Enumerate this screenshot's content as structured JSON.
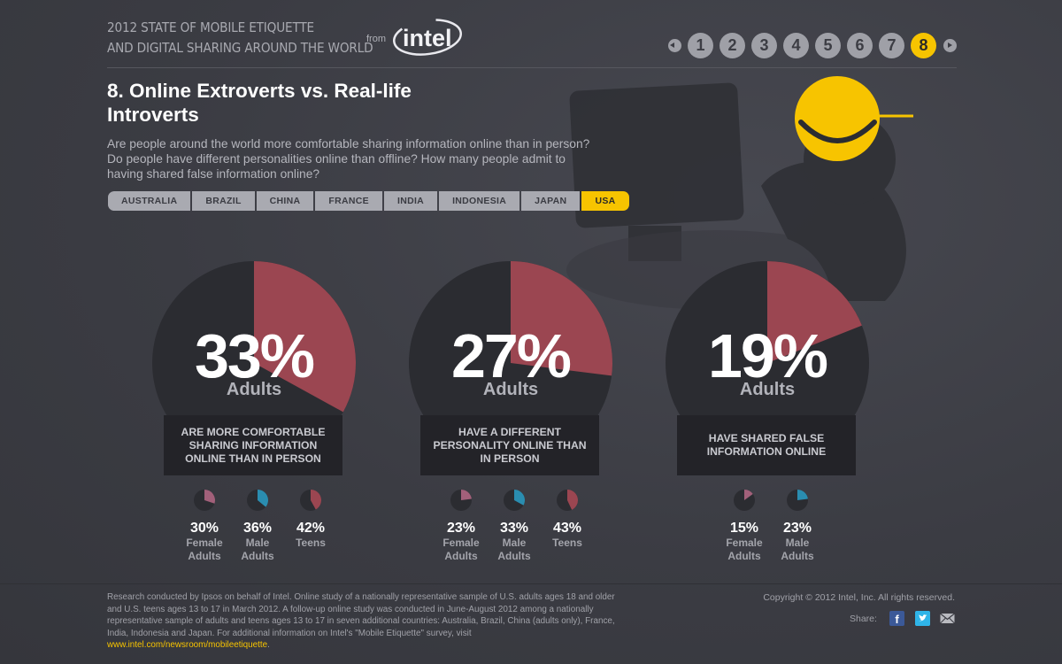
{
  "header": {
    "title_line1": "2012 STATE OF MOBILE ETIQUETTE",
    "title_line2": "AND DIGITAL SHARING AROUND THE WORLD",
    "from_label": "from",
    "logo_text": "intel"
  },
  "pager": {
    "pages": [
      "1",
      "2",
      "3",
      "4",
      "5",
      "6",
      "7",
      "8"
    ],
    "active": "8"
  },
  "section": {
    "title": "8. Online Extroverts vs. Real-life Introverts",
    "subtitle": "Are people around the world more comfortable sharing information online than in person? Do people have different personalities online than offline? How many people admit to having shared false information online?"
  },
  "tabs": [
    "AUSTRALIA",
    "BRAZIL",
    "CHINA",
    "FRANCE",
    "INDIA",
    "INDONESIA",
    "JAPAN",
    "USA"
  ],
  "active_tab": "USA",
  "colors": {
    "accent": "#f7c400",
    "pie_red": "#9b4651",
    "pie_dark": "#2b2c31",
    "pie_mauve": "#a2607a",
    "pie_blue": "#2a8db0"
  },
  "stats": [
    {
      "value": "33%",
      "percent": 33,
      "who": "Adults",
      "caption": "ARE MORE COMFORTABLE SHARING INFORMATION ONLINE THAN IN PERSON",
      "breakdown": [
        {
          "value": "30%",
          "percent": 30,
          "label": "Female Adults",
          "color": "mauve"
        },
        {
          "value": "36%",
          "percent": 36,
          "label": "Male Adults",
          "color": "blue"
        },
        {
          "value": "42%",
          "percent": 42,
          "label": "Teens",
          "color": "red"
        }
      ]
    },
    {
      "value": "27%",
      "percent": 27,
      "who": "Adults",
      "caption": "HAVE A DIFFERENT PERSONALITY ONLINE THAN IN PERSON",
      "breakdown": [
        {
          "value": "23%",
          "percent": 23,
          "label": "Female Adults",
          "color": "mauve"
        },
        {
          "value": "33%",
          "percent": 33,
          "label": "Male Adults",
          "color": "blue"
        },
        {
          "value": "43%",
          "percent": 43,
          "label": "Teens",
          "color": "red"
        }
      ]
    },
    {
      "value": "19%",
      "percent": 19,
      "who": "Adults",
      "caption": "HAVE SHARED FALSE INFORMATION ONLINE",
      "breakdown": [
        {
          "value": "15%",
          "percent": 15,
          "label": "Female Adults",
          "color": "mauve"
        },
        {
          "value": "23%",
          "percent": 23,
          "label": "Male Adults",
          "color": "blue"
        }
      ]
    }
  ],
  "footer": {
    "note": "Research conducted by Ipsos on behalf of Intel. Online study of a nationally representative sample of U.S. adults ages 18 and older and U.S. teens ages 13 to 17 in March 2012. A follow-up online study was conducted in June-August 2012 among a nationally representative sample of adults and teens ages 13 to 17 in seven additional countries: Australia, Brazil, China (adults only), France, India, Indonesia and Japan. For additional information on Intel's \"Mobile Etiquette\" survey, visit",
    "link": "www.intel.com/newsroom/mobileetiquette",
    "link_suffix": ".",
    "copyright": "Copyright © 2012 Intel, Inc. All rights reserved.",
    "share_label": "Share:",
    "facebook_glyph": "f"
  }
}
